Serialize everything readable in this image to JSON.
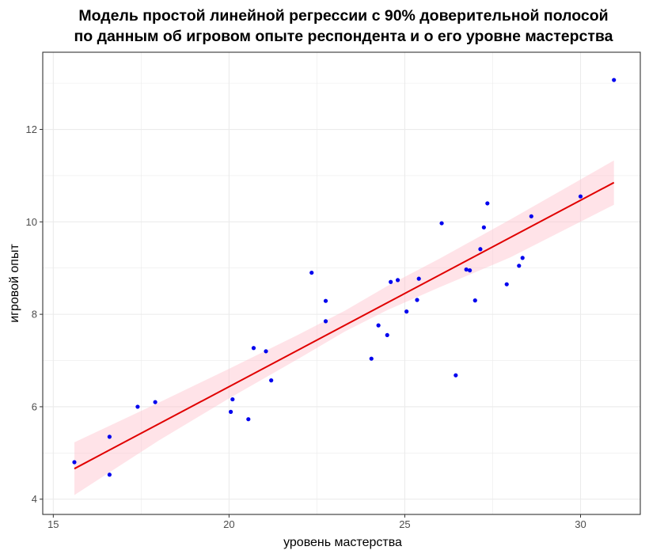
{
  "chart_data": {
    "type": "scatter",
    "title": "Модель простой линейной регрессии с 90% доверительной полосой\nпо данным об игровом опыте респондента и о его уровне мастерства",
    "xlabel": "уровень мастерства",
    "ylabel": "игровой опыт",
    "xlim": [
      14.7,
      31.7
    ],
    "ylim": [
      3.67,
      13.67
    ],
    "x_ticks": [
      15,
      20,
      25,
      30
    ],
    "y_ticks": [
      4,
      6,
      8,
      10,
      12
    ],
    "x_tick_labels": [
      "15",
      "20",
      "25",
      "30"
    ],
    "y_tick_labels": [
      "4",
      "6",
      "8",
      "10",
      "12"
    ],
    "grid": true,
    "legend": "none",
    "colors": {
      "points": "#0000ee",
      "fit_line": "#e00000",
      "confidence_band": "#ffc0cb",
      "grid": "#ebebeb",
      "panel_border": "#333333"
    },
    "points": [
      {
        "x": 15.6,
        "y": 4.8
      },
      {
        "x": 16.6,
        "y": 5.35
      },
      {
        "x": 16.6,
        "y": 4.53
      },
      {
        "x": 17.4,
        "y": 6.0
      },
      {
        "x": 17.9,
        "y": 6.1
      },
      {
        "x": 20.05,
        "y": 5.89
      },
      {
        "x": 20.1,
        "y": 6.16
      },
      {
        "x": 20.55,
        "y": 5.73
      },
      {
        "x": 20.7,
        "y": 7.27
      },
      {
        "x": 21.05,
        "y": 7.2
      },
      {
        "x": 21.2,
        "y": 6.57
      },
      {
        "x": 22.35,
        "y": 8.9
      },
      {
        "x": 22.75,
        "y": 8.29
      },
      {
        "x": 22.75,
        "y": 7.85
      },
      {
        "x": 24.05,
        "y": 7.04
      },
      {
        "x": 24.25,
        "y": 7.76
      },
      {
        "x": 24.5,
        "y": 7.55
      },
      {
        "x": 24.6,
        "y": 8.7
      },
      {
        "x": 24.8,
        "y": 8.74
      },
      {
        "x": 25.05,
        "y": 8.06
      },
      {
        "x": 25.35,
        "y": 8.31
      },
      {
        "x": 25.4,
        "y": 8.77
      },
      {
        "x": 26.05,
        "y": 9.97
      },
      {
        "x": 26.45,
        "y": 6.68
      },
      {
        "x": 26.75,
        "y": 8.97
      },
      {
        "x": 26.85,
        "y": 8.95
      },
      {
        "x": 27.0,
        "y": 8.3
      },
      {
        "x": 27.15,
        "y": 9.41
      },
      {
        "x": 27.25,
        "y": 9.88
      },
      {
        "x": 27.35,
        "y": 10.4
      },
      {
        "x": 27.9,
        "y": 8.65
      },
      {
        "x": 28.25,
        "y": 9.05
      },
      {
        "x": 28.35,
        "y": 9.22
      },
      {
        "x": 28.6,
        "y": 10.12
      },
      {
        "x": 30.0,
        "y": 10.55
      },
      {
        "x": 30.95,
        "y": 13.07
      }
    ],
    "fit_line": {
      "x": [
        15.6,
        30.95
      ],
      "y": [
        4.66,
        10.85
      ]
    },
    "confidence_band": {
      "x": [
        15.6,
        18.0,
        20.0,
        22.0,
        23.3,
        24.5,
        26.0,
        28.0,
        30.95
      ],
      "lower": [
        4.09,
        5.27,
        6.18,
        7.05,
        7.63,
        8.09,
        8.59,
        9.23,
        10.37
      ],
      "upper": [
        5.23,
        6.09,
        6.82,
        7.57,
        8.08,
        8.61,
        9.21,
        10.05,
        11.33
      ]
    }
  }
}
